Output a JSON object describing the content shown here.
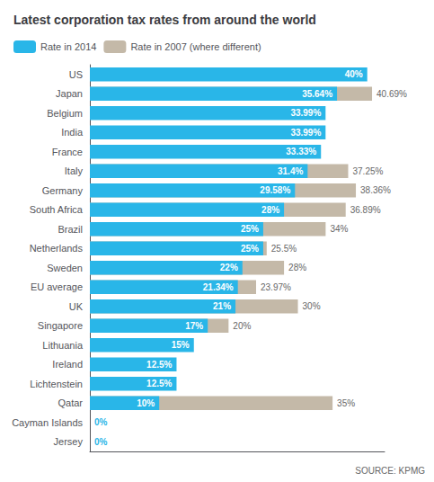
{
  "chart_data": {
    "type": "bar",
    "orientation": "horizontal",
    "title": "Latest corporation tax rates from around the world",
    "categories": [
      "US",
      "Japan",
      "Belgium",
      "India",
      "France",
      "Italy",
      "Germany",
      "South Africa",
      "Brazil",
      "Netherlands",
      "Sweden",
      "EU average",
      "UK",
      "Singapore",
      "Lithuania",
      "Ireland",
      "Lichtenstein",
      "Qatar",
      "Cayman Islands",
      "Jersey"
    ],
    "series": [
      {
        "name": "Rate in 2014",
        "color": "#29B6E8",
        "values": [
          40.0,
          35.64,
          33.99,
          33.99,
          33.33,
          31.4,
          29.58,
          28.0,
          25.0,
          25.0,
          22.0,
          21.34,
          21.0,
          17.0,
          15.0,
          12.5,
          12.5,
          10.0,
          0.0,
          0.0
        ],
        "value_labels": [
          "40%",
          "35.64%",
          "33.99%",
          "33.99%",
          "33.33%",
          "31.4%",
          "29.58%",
          "28%",
          "25%",
          "25%",
          "22%",
          "21.34%",
          "21%",
          "17%",
          "15%",
          "12.5%",
          "12.5%",
          "10%",
          "0%",
          "0%"
        ]
      },
      {
        "name": "Rate in 2007 (where different)",
        "color": "#C4B9A8",
        "values": [
          null,
          40.69,
          null,
          null,
          null,
          37.25,
          38.36,
          36.89,
          34.0,
          25.5,
          28.0,
          23.97,
          30.0,
          20.0,
          null,
          null,
          null,
          35.0,
          null,
          null
        ],
        "value_labels": [
          null,
          "40.69%",
          null,
          null,
          null,
          "37.25%",
          "38.36%",
          "36.89%",
          "34%",
          "25.5%",
          "28%",
          "23.97%",
          "30%",
          "20%",
          null,
          null,
          null,
          "35%",
          null,
          null
        ]
      }
    ],
    "xlim": [
      0,
      42.5
    ],
    "tick_labels": "y",
    "grid": false,
    "legend": "top",
    "data_labels": true,
    "annotations": [
      "SOURCE: KPMG"
    ]
  }
}
